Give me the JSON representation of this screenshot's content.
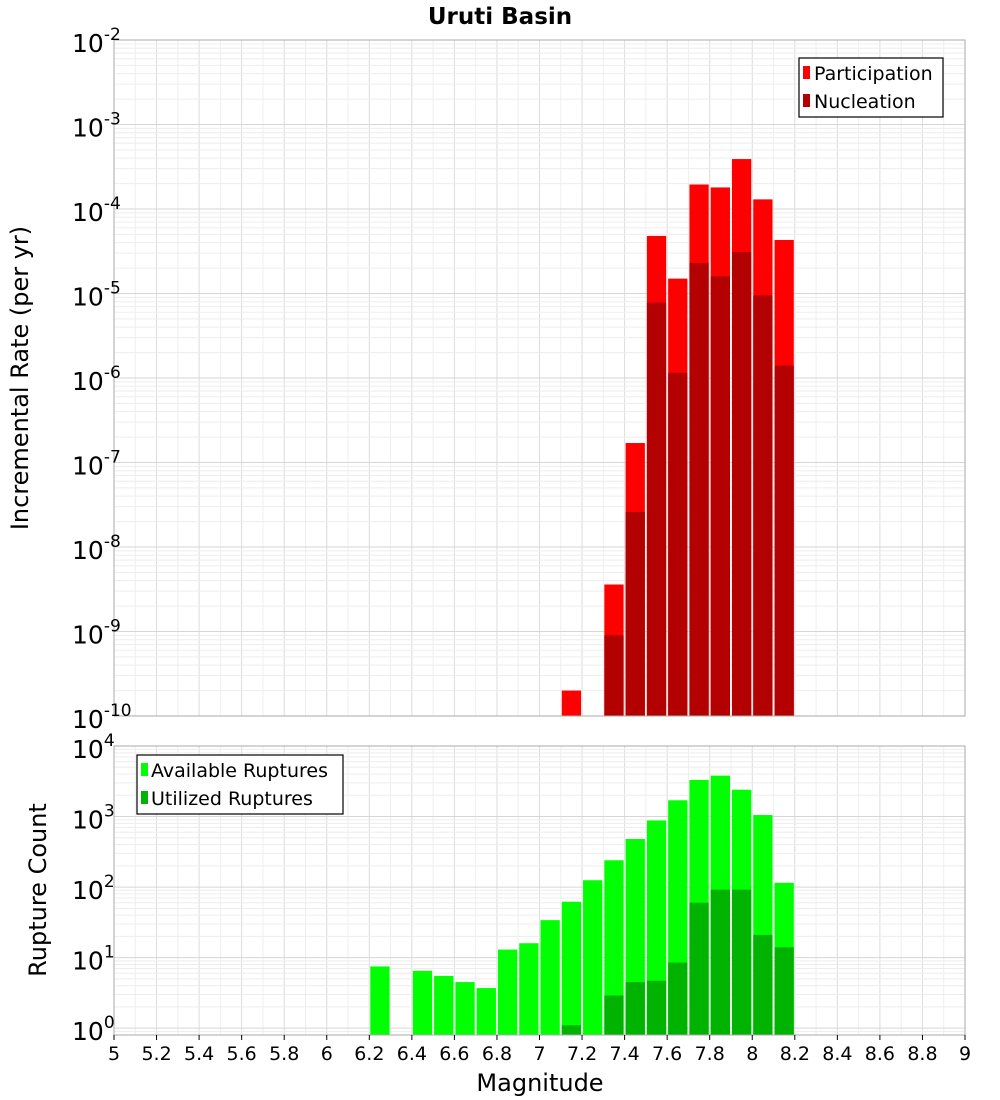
{
  "title": "Uruti Basin",
  "chart_data": [
    {
      "type": "bar",
      "yscale": "log",
      "ylabel": "Incremental Rate (per yr)",
      "ylim": [
        1e-10,
        0.01
      ],
      "y_tick_exponents": [
        "-2",
        "-3",
        "-4",
        "-5",
        "-6",
        "-7",
        "-8",
        "-9",
        "-10"
      ],
      "y_tick_base": "10",
      "xlim": [
        5,
        9
      ],
      "bin_width": 0.1,
      "grid": true,
      "legend_position": "top-right",
      "x": [
        7.15,
        7.35,
        7.45,
        7.55,
        7.65,
        7.75,
        7.85,
        7.95,
        8.05,
        8.15
      ],
      "series": [
        {
          "name": "Participation",
          "color": "#ff0000",
          "values": [
            2e-10,
            3.6e-09,
            1.7e-07,
            4.8e-05,
            1.5e-05,
            0.000195,
            0.00018,
            0.00039,
            0.00013,
            4.3e-05
          ]
        },
        {
          "name": "Nucleation",
          "color": "#b30000",
          "values": [
            null,
            9e-10,
            2.6e-08,
            7.8e-06,
            1.15e-06,
            2.3e-05,
            1.6e-05,
            3.1e-05,
            9.5e-06,
            1.4e-06
          ]
        }
      ]
    },
    {
      "type": "bar",
      "yscale": "log",
      "ylabel": "Rupture Count",
      "xlabel": "Magnitude",
      "ylim": [
        0.8,
        10000
      ],
      "y_tick_exponents": [
        "4",
        "3",
        "2",
        "1",
        "0"
      ],
      "y_tick_base": "10",
      "xlim": [
        5,
        9
      ],
      "x_ticks": [
        "5",
        "5.2",
        "5.4",
        "5.6",
        "5.8",
        "6",
        "6.2",
        "6.4",
        "6.6",
        "6.8",
        "7",
        "7.2",
        "7.4",
        "7.6",
        "7.8",
        "8",
        "8.2",
        "8.4",
        "8.6",
        "8.8",
        "9"
      ],
      "bin_width": 0.1,
      "grid": true,
      "legend_position": "top-left",
      "x": [
        6.25,
        6.45,
        6.55,
        6.65,
        6.75,
        6.85,
        6.95,
        7.05,
        7.15,
        7.25,
        7.35,
        7.45,
        7.55,
        7.65,
        7.75,
        7.85,
        7.95,
        8.05,
        8.15
      ],
      "series": [
        {
          "name": "Available Ruptures",
          "color": "#00ff00",
          "values": [
            7.5,
            6.5,
            5.5,
            4.5,
            3.7,
            13,
            16,
            34,
            62,
            125,
            240,
            480,
            880,
            1700,
            3300,
            3800,
            2400,
            1050,
            115
          ]
        },
        {
          "name": "Utilized Ruptures",
          "color": "#00b300",
          "values": [
            null,
            null,
            null,
            null,
            null,
            null,
            null,
            null,
            1.1,
            null,
            2.9,
            4.5,
            4.7,
            8.5,
            60,
            92,
            92,
            21,
            14
          ]
        }
      ]
    }
  ]
}
